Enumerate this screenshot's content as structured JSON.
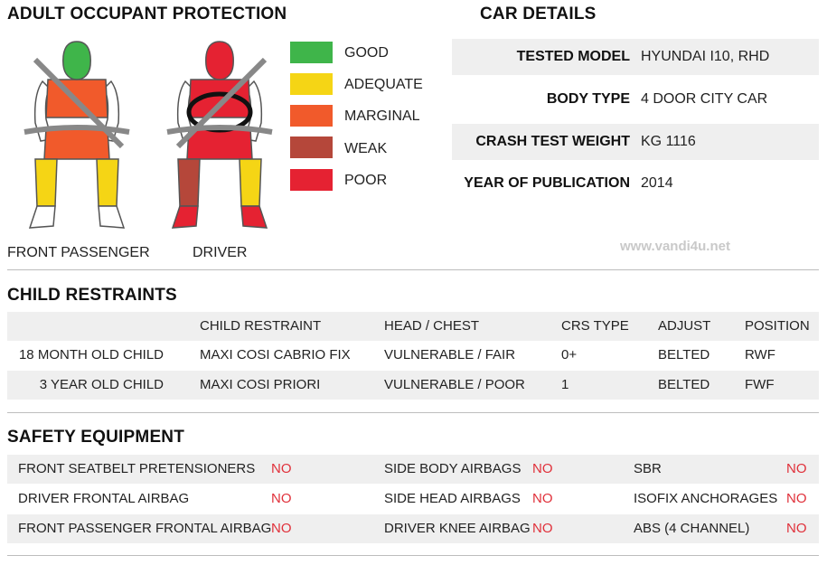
{
  "colors": {
    "good": "#3fb54a",
    "adequate": "#f5d515",
    "marginal": "#f15a2b",
    "weak": "#b5473a",
    "poor": "#e52232",
    "no_text": "#e0303a"
  },
  "adult": {
    "title": "ADULT OCCUPANT PROTECTION",
    "front_passenger_label": "FRONT PASSENGER",
    "driver_label": "DRIVER",
    "legend": [
      "GOOD",
      "ADEQUATE",
      "MARGINAL",
      "WEAK",
      "POOR"
    ],
    "front_passenger_ratings": {
      "head": "good",
      "chest": "marginal",
      "pelvis": "marginal",
      "legs": "adequate",
      "feet": "none"
    },
    "driver_ratings": {
      "head": "poor",
      "chest": "poor",
      "pelvis": "poor",
      "left_leg": "weak",
      "right_leg": "adequate",
      "feet": "poor"
    }
  },
  "car": {
    "title": "CAR DETAILS",
    "rows": [
      {
        "key": "TESTED MODEL",
        "value": "HYUNDAI I10, RHD"
      },
      {
        "key": "BODY TYPE",
        "value": "4 DOOR CITY CAR"
      },
      {
        "key": "CRASH TEST WEIGHT",
        "value": "KG 1116"
      },
      {
        "key": "YEAR OF PUBLICATION",
        "value": "2014"
      }
    ]
  },
  "watermark": "www.vandi4u.net",
  "child": {
    "title": "CHILD RESTRAINTS",
    "headers": [
      "CHILD RESTRAINT",
      "HEAD / CHEST",
      "CRS TYPE",
      "ADJUST",
      "POSITION"
    ],
    "rows": [
      {
        "child": "18 MONTH OLD CHILD",
        "restraint": "MAXI COSI CABRIO FIX",
        "head_chest": "VULNERABLE / FAIR",
        "crs": "0+",
        "adjust": "BELTED",
        "position": "RWF"
      },
      {
        "child": "3 YEAR OLD CHILD",
        "restraint": "MAXI COSI PRIORI",
        "head_chest": "VULNERABLE / POOR",
        "crs": "1",
        "adjust": "BELTED",
        "position": "FWF"
      }
    ]
  },
  "safety": {
    "title": "SAFETY EQUIPMENT",
    "rows": [
      [
        {
          "label": "FRONT SEATBELT PRETENSIONERS",
          "value": "NO"
        },
        {
          "label": "SIDE BODY AIRBAGS",
          "value": "NO"
        },
        {
          "label": "SBR",
          "value": "NO"
        }
      ],
      [
        {
          "label": "DRIVER FRONTAL AIRBAG",
          "value": "NO"
        },
        {
          "label": "SIDE HEAD AIRBAGS",
          "value": "NO"
        },
        {
          "label": "ISOFIX ANCHORAGES",
          "value": "NO"
        }
      ],
      [
        {
          "label": "FRONT PASSENGER FRONTAL AIRBAG",
          "value": "NO"
        },
        {
          "label": "DRIVER KNEE AIRBAG",
          "value": "NO"
        },
        {
          "label": "ABS (4 CHANNEL)",
          "value": "NO"
        }
      ]
    ]
  }
}
